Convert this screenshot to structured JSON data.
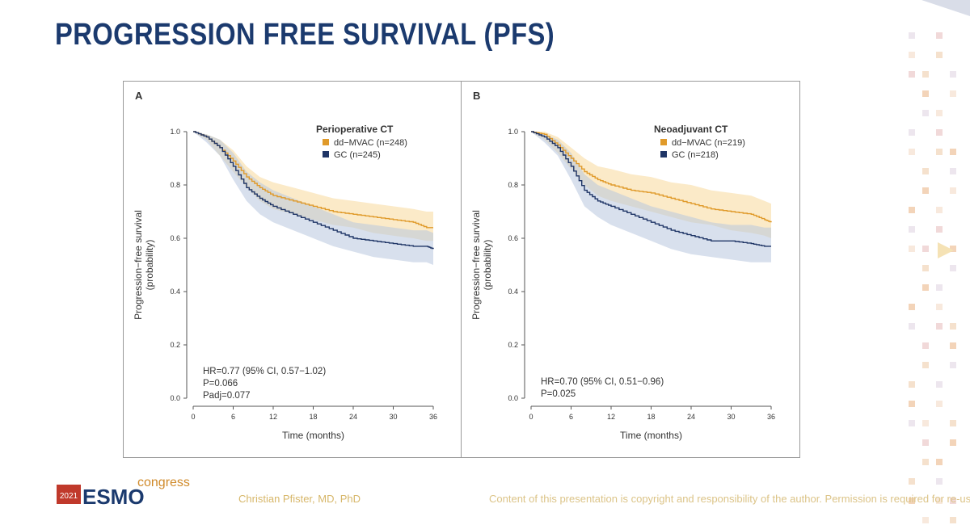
{
  "slide": {
    "title": "PROGRESSION FREE SURVIVAL (PFS)",
    "author": "Christian Pfister, MD, PhD",
    "copyright": "Content of this presentation is copyright and responsibility of the author. Permission is required for re-use.",
    "logo": {
      "year": "2021",
      "name": "ESMO",
      "suffix": "congress"
    }
  },
  "colors": {
    "ddmvac": "#e09a2a",
    "ddmvac_band": "#f8d89a",
    "gc": "#1f3566",
    "gc_band": "#b8c6de",
    "title": "#1b3a6e"
  },
  "chart_data": [
    {
      "type": "line",
      "panel_label": "A",
      "legend_title": "Perioperative CT",
      "xlabel": "Time (months)",
      "ylabel_line1": "Progression−free survival",
      "ylabel_line2": "(probability)",
      "xlim": [
        0,
        36
      ],
      "ylim": [
        0,
        1
      ],
      "xticks": [
        0,
        6,
        12,
        18,
        24,
        30,
        36
      ],
      "yticks": [
        0.0,
        0.2,
        0.4,
        0.6,
        0.8,
        1.0
      ],
      "legend_position": "top-right",
      "annotation": [
        "HR=0.77 (95% CI, 0.57−1.02)",
        "P=0.066",
        "Padj=0.077"
      ],
      "series": [
        {
          "name": "dd−MVAC (n=248)",
          "x": [
            0,
            2,
            4,
            6,
            8,
            10,
            12,
            15,
            18,
            21,
            24,
            27,
            30,
            33,
            35,
            36
          ],
          "y": [
            1.0,
            0.98,
            0.94,
            0.89,
            0.83,
            0.79,
            0.76,
            0.74,
            0.72,
            0.7,
            0.69,
            0.68,
            0.67,
            0.66,
            0.64,
            0.64
          ],
          "lower": [
            1.0,
            0.97,
            0.91,
            0.85,
            0.79,
            0.74,
            0.71,
            0.69,
            0.67,
            0.65,
            0.64,
            0.62,
            0.61,
            0.6,
            0.59,
            0.59
          ],
          "upper": [
            1.0,
            0.99,
            0.97,
            0.93,
            0.87,
            0.83,
            0.81,
            0.79,
            0.77,
            0.75,
            0.74,
            0.73,
            0.72,
            0.71,
            0.7,
            0.7
          ]
        },
        {
          "name": "GC (n=245)",
          "x": [
            0,
            2,
            4,
            6,
            8,
            10,
            12,
            15,
            18,
            21,
            24,
            27,
            30,
            33,
            35,
            36
          ],
          "y": [
            1.0,
            0.98,
            0.94,
            0.87,
            0.79,
            0.75,
            0.72,
            0.69,
            0.66,
            0.63,
            0.6,
            0.59,
            0.58,
            0.57,
            0.57,
            0.56
          ],
          "lower": [
            1.0,
            0.96,
            0.91,
            0.82,
            0.74,
            0.69,
            0.66,
            0.63,
            0.6,
            0.57,
            0.55,
            0.53,
            0.52,
            0.51,
            0.51,
            0.5
          ],
          "upper": [
            1.0,
            0.99,
            0.97,
            0.92,
            0.85,
            0.81,
            0.78,
            0.75,
            0.72,
            0.69,
            0.66,
            0.65,
            0.64,
            0.63,
            0.63,
            0.62
          ]
        }
      ]
    },
    {
      "type": "line",
      "panel_label": "B",
      "legend_title": "Neoadjuvant CT",
      "xlabel": "Time (months)",
      "ylabel_line1": "Progression−free survival",
      "ylabel_line2": "(probability)",
      "xlim": [
        0,
        36
      ],
      "ylim": [
        0,
        1
      ],
      "xticks": [
        0,
        6,
        12,
        18,
        24,
        30,
        36
      ],
      "yticks": [
        0.0,
        0.2,
        0.4,
        0.6,
        0.8,
        1.0
      ],
      "legend_position": "top-right",
      "annotation": [
        "HR=0.70 (95% CI, 0.51−0.96)",
        "P=0.025"
      ],
      "series": [
        {
          "name": "dd−MVAC (n=219)",
          "x": [
            0,
            2,
            4,
            6,
            8,
            10,
            12,
            15,
            18,
            21,
            24,
            27,
            30,
            33,
            35,
            36
          ],
          "y": [
            1.0,
            0.99,
            0.95,
            0.9,
            0.85,
            0.82,
            0.8,
            0.78,
            0.77,
            0.75,
            0.73,
            0.71,
            0.7,
            0.69,
            0.67,
            0.66
          ],
          "lower": [
            1.0,
            0.97,
            0.92,
            0.86,
            0.8,
            0.76,
            0.74,
            0.72,
            0.7,
            0.68,
            0.66,
            0.65,
            0.63,
            0.62,
            0.61,
            0.6
          ],
          "upper": [
            1.0,
            1.0,
            0.98,
            0.94,
            0.9,
            0.87,
            0.86,
            0.84,
            0.83,
            0.81,
            0.8,
            0.78,
            0.77,
            0.76,
            0.74,
            0.73
          ]
        },
        {
          "name": "GC (n=218)",
          "x": [
            0,
            2,
            4,
            6,
            8,
            10,
            12,
            15,
            18,
            21,
            24,
            27,
            30,
            33,
            35,
            36
          ],
          "y": [
            1.0,
            0.98,
            0.94,
            0.87,
            0.78,
            0.74,
            0.72,
            0.69,
            0.66,
            0.63,
            0.61,
            0.59,
            0.59,
            0.58,
            0.57,
            0.57
          ],
          "lower": [
            1.0,
            0.96,
            0.91,
            0.82,
            0.72,
            0.68,
            0.65,
            0.62,
            0.59,
            0.56,
            0.54,
            0.53,
            0.52,
            0.51,
            0.51,
            0.51
          ],
          "upper": [
            1.0,
            0.99,
            0.97,
            0.92,
            0.84,
            0.8,
            0.78,
            0.75,
            0.72,
            0.7,
            0.68,
            0.66,
            0.65,
            0.65,
            0.64,
            0.64
          ]
        }
      ]
    }
  ]
}
